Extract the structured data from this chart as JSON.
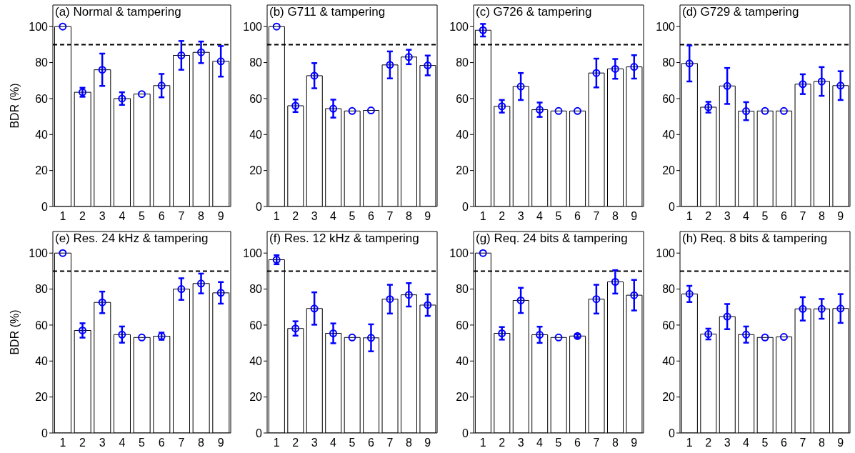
{
  "chart_data": [
    {
      "type": "bar",
      "title": "(a) Normal & tampering",
      "ylabel": "BDR (%)",
      "categories": [
        "1",
        "2",
        "3",
        "4",
        "5",
        "6",
        "7",
        "8",
        "9"
      ],
      "ylim": [
        0,
        112
      ],
      "yticks": [
        0,
        20,
        40,
        60,
        80,
        100
      ],
      "marker": "circle",
      "ref_lines": [
        {
          "axis": "y",
          "value": 90,
          "color": "#000000",
          "line_style": "dashed"
        }
      ],
      "series": [
        {
          "color": "#ffffff",
          "values": [
            100,
            63.5,
            76,
            60,
            62.5,
            67.2,
            84,
            85.7,
            80.7
          ]
        },
        {
          "type": "scatter",
          "color": "#0000ff",
          "x": [
            "1",
            "2",
            "3",
            "4",
            "5",
            "6",
            "7",
            "8",
            "9"
          ],
          "values": [
            100,
            63.5,
            76,
            60,
            62.5,
            67.2,
            84,
            85.7,
            80.7
          ],
          "errors": [
            null,
            2.5,
            9,
            3.5,
            null,
            6.5,
            8,
            6,
            8.5
          ]
        }
      ]
    },
    {
      "type": "bar",
      "title": "(b) G711 & tampering",
      "categories": [
        "1",
        "2",
        "3",
        "4",
        "5",
        "6",
        "7",
        "8",
        "9"
      ],
      "ylim": [
        0,
        112
      ],
      "yticks": [
        0,
        20,
        40,
        60,
        80,
        100
      ],
      "marker": "circle",
      "ref_lines": [
        {
          "axis": "y",
          "value": 90,
          "color": "#000000",
          "line_style": "dashed"
        }
      ],
      "series": [
        {
          "color": "#ffffff",
          "values": [
            100,
            56,
            72.7,
            54.4,
            53.1,
            53.4,
            78.7,
            83.1,
            78.4
          ]
        },
        {
          "type": "scatter",
          "color": "#0000ff",
          "x": [
            "1",
            "2",
            "3",
            "4",
            "5",
            "6",
            "7",
            "8",
            "9"
          ],
          "values": [
            100,
            56,
            72.7,
            54.4,
            53.1,
            53.4,
            78.7,
            83.1,
            78.4
          ],
          "errors": [
            null,
            3.5,
            7,
            5,
            null,
            null,
            7.5,
            4,
            5.5
          ]
        }
      ]
    },
    {
      "type": "bar",
      "title": "(c) G726 & tampering",
      "categories": [
        "1",
        "2",
        "3",
        "4",
        "5",
        "6",
        "7",
        "8",
        "9"
      ],
      "ylim": [
        0,
        112
      ],
      "yticks": [
        0,
        20,
        40,
        60,
        80,
        100
      ],
      "marker": "circle",
      "ref_lines": [
        {
          "axis": "y",
          "value": 90,
          "color": "#000000",
          "line_style": "dashed"
        }
      ],
      "series": [
        {
          "color": "#ffffff",
          "values": [
            98,
            55.7,
            66.7,
            53.8,
            53.1,
            53.1,
            74.2,
            76.5,
            77.6
          ]
        },
        {
          "type": "scatter",
          "color": "#0000ff",
          "x": [
            "1",
            "2",
            "3",
            "4",
            "5",
            "6",
            "7",
            "8",
            "9"
          ],
          "values": [
            98,
            55.7,
            66.7,
            53.8,
            53.1,
            53.1,
            74.2,
            76.5,
            77.6
          ],
          "errors": [
            3.5,
            3.5,
            7.5,
            4,
            null,
            null,
            8,
            5.5,
            6.5
          ]
        }
      ]
    },
    {
      "type": "bar",
      "title": "(d) G729 & tampering",
      "categories": [
        "1",
        "2",
        "3",
        "4",
        "5",
        "6",
        "7",
        "8",
        "9"
      ],
      "ylim": [
        0,
        112
      ],
      "yticks": [
        0,
        20,
        40,
        60,
        80,
        100
      ],
      "marker": "circle",
      "ref_lines": [
        {
          "axis": "y",
          "value": 90,
          "color": "#000000",
          "line_style": "dashed"
        }
      ],
      "series": [
        {
          "color": "#ffffff",
          "values": [
            79.5,
            55.2,
            67,
            53,
            53.1,
            53.1,
            68,
            69.5,
            67.2
          ]
        },
        {
          "type": "scatter",
          "color": "#0000ff",
          "x": [
            "1",
            "2",
            "3",
            "4",
            "5",
            "6",
            "7",
            "8",
            "9"
          ],
          "values": [
            79.5,
            55.2,
            67,
            53,
            53.1,
            53.1,
            68,
            69.5,
            67.2
          ],
          "errors": [
            10,
            3,
            10,
            5,
            null,
            null,
            5.5,
            8,
            8
          ]
        }
      ]
    },
    {
      "type": "bar",
      "title": "(e) Res. 24 kHz & tampering",
      "ylabel": "BDR (%)",
      "categories": [
        "1",
        "2",
        "3",
        "4",
        "5",
        "6",
        "7",
        "8",
        "9"
      ],
      "ylim": [
        0,
        112
      ],
      "yticks": [
        0,
        20,
        40,
        60,
        80,
        100
      ],
      "marker": "circle",
      "ref_lines": [
        {
          "axis": "y",
          "value": 90,
          "color": "#000000",
          "line_style": "dashed"
        }
      ],
      "series": [
        {
          "color": "#ffffff",
          "values": [
            100,
            57,
            72.6,
            54.7,
            53.1,
            53.8,
            80,
            83.1,
            77.9
          ]
        },
        {
          "type": "scatter",
          "color": "#0000ff",
          "x": [
            "1",
            "2",
            "3",
            "4",
            "5",
            "6",
            "7",
            "8",
            "9"
          ],
          "values": [
            100,
            57,
            72.6,
            54.7,
            53.1,
            53.8,
            80,
            83.1,
            77.9
          ],
          "errors": [
            null,
            4,
            6,
            4.5,
            null,
            2,
            6,
            5.5,
            6
          ]
        }
      ]
    },
    {
      "type": "bar",
      "title": "(f) Res. 12 kHz & tampering",
      "categories": [
        "1",
        "2",
        "3",
        "4",
        "5",
        "6",
        "7",
        "8",
        "9"
      ],
      "ylim": [
        0,
        112
      ],
      "yticks": [
        0,
        20,
        40,
        60,
        80,
        100
      ],
      "marker": "circle",
      "ref_lines": [
        {
          "axis": "y",
          "value": 90,
          "color": "#000000",
          "line_style": "dashed"
        }
      ],
      "series": [
        {
          "color": "#ffffff",
          "values": [
            96.3,
            58.1,
            69.2,
            55.4,
            53.1,
            52.9,
            74.4,
            76.8,
            71.1
          ]
        },
        {
          "type": "scatter",
          "color": "#0000ff",
          "x": [
            "1",
            "2",
            "3",
            "4",
            "5",
            "6",
            "7",
            "8",
            "9"
          ],
          "values": [
            96.3,
            58.1,
            69.2,
            55.4,
            53.1,
            52.9,
            74.4,
            76.8,
            71.1
          ],
          "errors": [
            2.5,
            4,
            9,
            5.5,
            null,
            7.5,
            8,
            6.5,
            6
          ]
        }
      ]
    },
    {
      "type": "bar",
      "title": "(g) Req. 24 bits & tampering",
      "categories": [
        "1",
        "2",
        "3",
        "4",
        "5",
        "6",
        "7",
        "8",
        "9"
      ],
      "ylim": [
        0,
        112
      ],
      "yticks": [
        0,
        20,
        40,
        60,
        80,
        100
      ],
      "marker": "circle",
      "ref_lines": [
        {
          "axis": "y",
          "value": 90,
          "color": "#000000",
          "line_style": "dashed"
        }
      ],
      "series": [
        {
          "color": "#ffffff",
          "values": [
            100,
            55.4,
            73.7,
            54.6,
            53.1,
            53.9,
            74.4,
            84,
            76.6
          ]
        },
        {
          "type": "scatter",
          "color": "#0000ff",
          "x": [
            "1",
            "2",
            "3",
            "4",
            "5",
            "6",
            "7",
            "8",
            "9"
          ],
          "values": [
            100,
            55.4,
            73.7,
            54.6,
            53.1,
            53.9,
            74.4,
            84,
            76.6
          ],
          "errors": [
            null,
            3.5,
            7,
            4.5,
            null,
            1,
            8,
            6.5,
            8.5
          ]
        }
      ]
    },
    {
      "type": "bar",
      "title": "(h) Req. 8 bits & tampering",
      "categories": [
        "1",
        "2",
        "3",
        "4",
        "5",
        "6",
        "7",
        "8",
        "9"
      ],
      "ylim": [
        0,
        112
      ],
      "yticks": [
        0,
        20,
        40,
        60,
        80,
        100
      ],
      "marker": "circle",
      "ref_lines": [
        {
          "axis": "y",
          "value": 90,
          "color": "#000000",
          "line_style": "dashed"
        }
      ],
      "series": [
        {
          "color": "#ffffff",
          "values": [
            77.3,
            55,
            64.7,
            54.7,
            53.1,
            53.4,
            69,
            69,
            69.2
          ]
        },
        {
          "type": "scatter",
          "color": "#0000ff",
          "x": [
            "1",
            "2",
            "3",
            "4",
            "5",
            "6",
            "7",
            "8",
            "9"
          ],
          "values": [
            77.3,
            55,
            64.7,
            54.7,
            53.1,
            53.4,
            69,
            69,
            69.2
          ],
          "errors": [
            4.5,
            3,
            7,
            4.5,
            null,
            null,
            6.5,
            5.5,
            8
          ]
        }
      ]
    }
  ]
}
